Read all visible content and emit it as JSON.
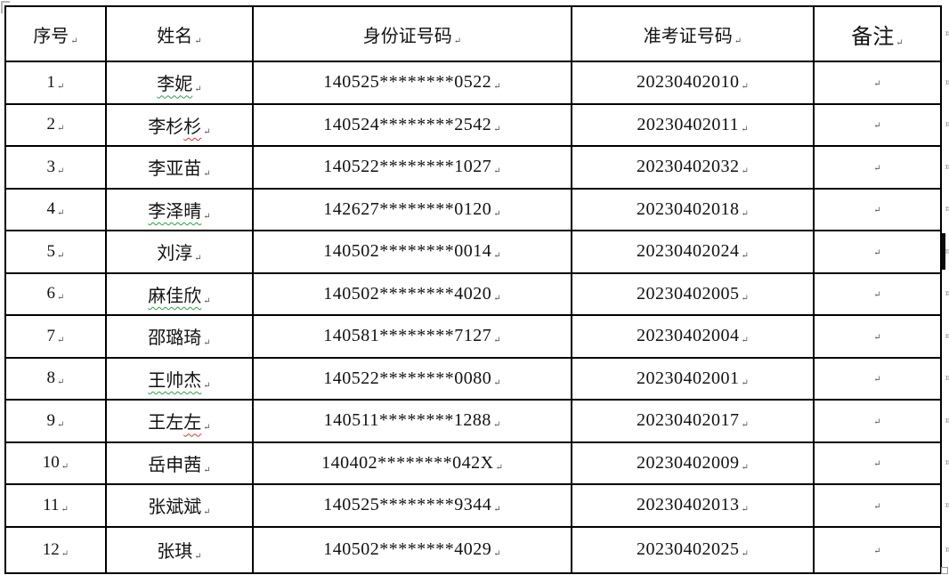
{
  "table": {
    "headers": [
      "序号",
      "姓名",
      "身份证号码",
      "准考证号码",
      "备注"
    ],
    "rows": [
      {
        "no": "1",
        "name": "李妮",
        "id": "140525********0522",
        "ticket": "20230402010",
        "remark": "",
        "underline": "green-full"
      },
      {
        "no": "2",
        "name": "李杉杉",
        "id": "140524********2542",
        "ticket": "20230402011",
        "remark": "",
        "underline": "red-last"
      },
      {
        "no": "3",
        "name": "李亚苗",
        "id": "140522********1027",
        "ticket": "20230402032",
        "remark": "",
        "underline": "none"
      },
      {
        "no": "4",
        "name": "李泽晴",
        "id": "142627********0120",
        "ticket": "20230402018",
        "remark": "",
        "underline": "green-full"
      },
      {
        "no": "5",
        "name": "刘淳",
        "id": "140502********0014",
        "ticket": "20230402024",
        "remark": "",
        "underline": "none"
      },
      {
        "no": "6",
        "name": "麻佳欣",
        "id": "140502********4020",
        "ticket": "20230402005",
        "remark": "",
        "underline": "green-full"
      },
      {
        "no": "7",
        "name": "邵璐琦",
        "id": "140581********7127",
        "ticket": "20230402004",
        "remark": "",
        "underline": "none"
      },
      {
        "no": "8",
        "name": "王帅杰",
        "id": "140522********0080",
        "ticket": "20230402001",
        "remark": "",
        "underline": "green-full"
      },
      {
        "no": "9",
        "name": "王左左",
        "id": "140511********1288",
        "ticket": "20230402017",
        "remark": "",
        "underline": "red-last"
      },
      {
        "no": "10",
        "name": "岳申茜",
        "id": "140402********042X",
        "ticket": "20230402009",
        "remark": "",
        "underline": "none"
      },
      {
        "no": "11",
        "name": "张斌斌",
        "id": "140525********9344",
        "ticket": "20230402013",
        "remark": "",
        "underline": "none"
      },
      {
        "no": "12",
        "name": "张琪",
        "id": "140502********4029",
        "ticket": "20230402025",
        "remark": "",
        "underline": "none"
      }
    ]
  },
  "marks": {
    "cell_end_mark": "↵",
    "row_end_mark": "¤"
  },
  "colors": {
    "border": "#000000",
    "grammar_underline_green": "#2f9e44",
    "spell_underline_red": "#e03131",
    "formatting_mark_gray": "#8a8a8a",
    "cursor_black": "#0a0a0a"
  }
}
